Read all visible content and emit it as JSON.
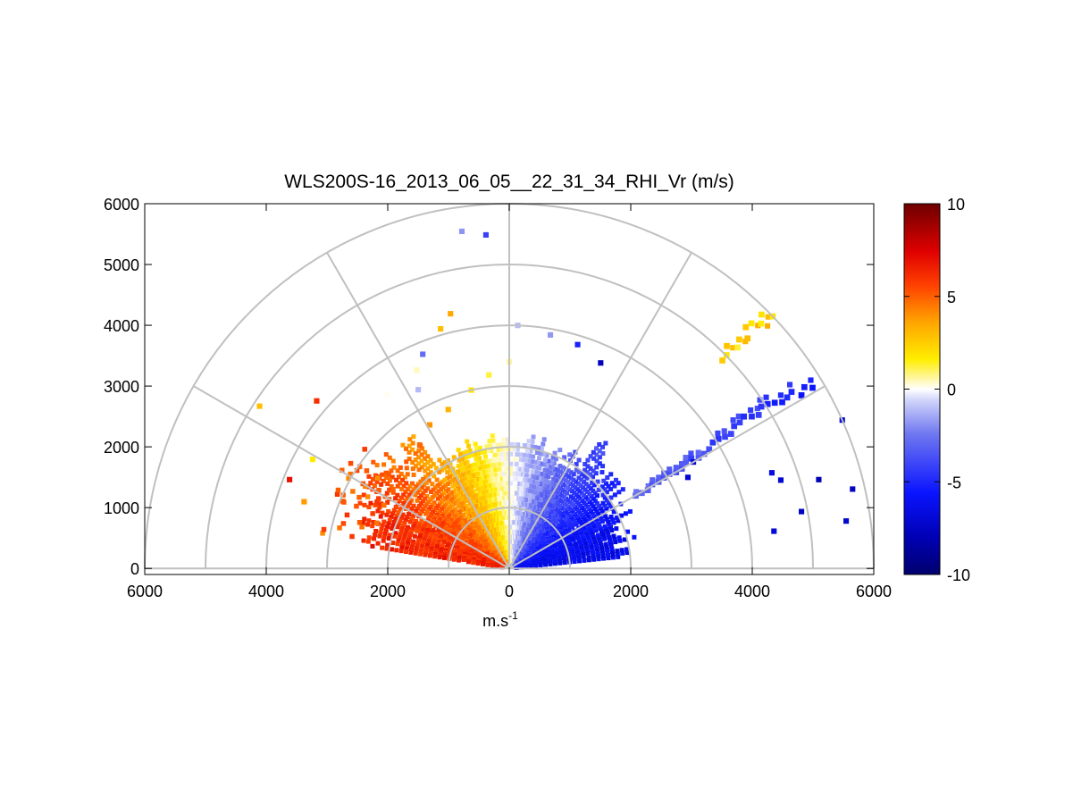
{
  "chart_data": {
    "type": "heatmap",
    "subtype": "polar RHI (range-height indicator) scan",
    "title": "WLS200S-16_2013_06_05__22_31_34_RHI_Vr (m/s)",
    "xlabel": "m.s",
    "xlabel_superscript": "-1",
    "x_ticks": [
      6000,
      4000,
      2000,
      0,
      2000,
      4000,
      6000
    ],
    "x_tick_values": [
      -6000,
      -4000,
      -2000,
      0,
      2000,
      4000,
      6000
    ],
    "y_ticks": [
      0,
      1000,
      2000,
      3000,
      4000,
      5000,
      6000
    ],
    "xlim": [
      -6000,
      6000
    ],
    "ylim": [
      -100,
      6000
    ],
    "polar_grid": {
      "range_rings": [
        1000,
        2000,
        3000,
        4000,
        5000,
        6000
      ],
      "spoke_angles_deg": [
        0,
        30,
        60,
        90,
        120,
        150,
        180
      ]
    },
    "colorbar": {
      "min": -10,
      "max": 10,
      "tick_labels": [
        "10",
        "5",
        "0",
        "-5",
        "-10"
      ],
      "tick_values": [
        10,
        5,
        0,
        -5,
        -10
      ],
      "colormap": "blue-white-yellow-red"
    },
    "velocity_field_description": "Positive radial velocity (yellow to red, up to ~+6 m/s) on the left half, near-zero at vertical, negative radial velocity (light to deep blue, down to ~-6 m/s) on the right half; dense returns within ~2500 m range, sparse returns aloft up to ~5500 m",
    "elevated_features": [
      {
        "label": "yellow band",
        "azimuth_deg": 45,
        "range_m": [
          5000,
          6000
        ],
        "velocity_ms": 2
      },
      {
        "label": "blue band",
        "azimuth_deg": 32,
        "range_m": [
          2500,
          6000
        ],
        "velocity_ms": -4
      }
    ]
  },
  "colors": {
    "axis": "#000000",
    "grid": "#c0c0c0",
    "background": "#ffffff",
    "colormap_stops": [
      "#00008b",
      "#0000ff",
      "#ffffff",
      "#ffff00",
      "#ff0000",
      "#7f0000"
    ]
  }
}
